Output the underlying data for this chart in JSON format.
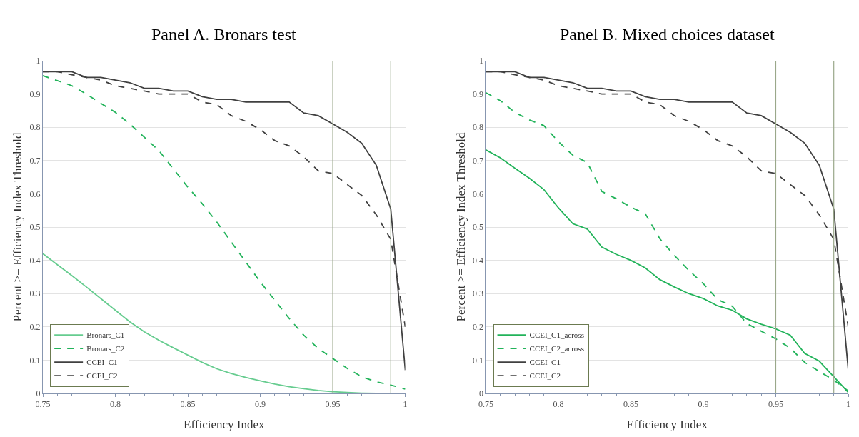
{
  "chart_data": [
    {
      "type": "line",
      "title": "Panel A. Bronars test",
      "xlabel": "Efficiency Index",
      "ylabel": "Percent >= Efficiency Index Threshold",
      "x": [
        0.75,
        0.76,
        0.77,
        0.78,
        0.79,
        0.8,
        0.81,
        0.82,
        0.83,
        0.84,
        0.85,
        0.86,
        0.87,
        0.88,
        0.89,
        0.9,
        0.91,
        0.92,
        0.93,
        0.94,
        0.95,
        0.96,
        0.97,
        0.98,
        0.99,
        1.0
      ],
      "series": [
        {
          "name": "Bronars_C1",
          "color": "#66cc8f",
          "line_style": "solid",
          "values": [
            0.42,
            0.387,
            0.354,
            0.32,
            0.285,
            0.25,
            0.215,
            0.185,
            0.16,
            0.137,
            0.115,
            0.093,
            0.074,
            0.06,
            0.048,
            0.038,
            0.028,
            0.02,
            0.014,
            0.009,
            0.005,
            0.003,
            0.001,
            0,
            0,
            0
          ]
        },
        {
          "name": "Bronars_C2",
          "color": "#22b35a",
          "line_style": "dashed",
          "values": [
            0.955,
            0.94,
            0.925,
            0.9,
            0.872,
            0.845,
            0.81,
            0.77,
            0.73,
            0.675,
            0.62,
            0.57,
            0.515,
            0.455,
            0.395,
            0.335,
            0.28,
            0.225,
            0.175,
            0.135,
            0.105,
            0.075,
            0.05,
            0.035,
            0.025,
            0.013
          ]
        },
        {
          "name": "CCEI_C1",
          "color": "#404040",
          "line_style": "solid",
          "values": [
            0.967,
            0.967,
            0.967,
            0.95,
            0.95,
            0.942,
            0.934,
            0.917,
            0.917,
            0.909,
            0.909,
            0.892,
            0.884,
            0.884,
            0.876,
            0.876,
            0.876,
            0.876,
            0.843,
            0.835,
            0.81,
            0.785,
            0.752,
            0.686,
            0.554,
            0.07
          ]
        },
        {
          "name": "CCEI_C2",
          "color": "#404040",
          "line_style": "dashed",
          "values": [
            0.967,
            0.967,
            0.958,
            0.95,
            0.942,
            0.925,
            0.917,
            0.909,
            0.9,
            0.9,
            0.9,
            0.876,
            0.868,
            0.835,
            0.818,
            0.793,
            0.76,
            0.744,
            0.711,
            0.669,
            0.661,
            0.628,
            0.595,
            0.537,
            0.463,
            0.2
          ]
        }
      ],
      "xlim": [
        0.75,
        1
      ],
      "xticks": [
        0.75,
        0.8,
        0.85,
        0.9,
        0.95,
        1
      ],
      "ylim": [
        0,
        1
      ],
      "yticks": [
        0,
        0.1,
        0.2,
        0.3,
        0.4,
        0.5,
        0.6,
        0.7,
        0.8,
        0.9,
        1
      ],
      "ref_lines": [
        {
          "axis": "x",
          "value": 0.95,
          "color": "#9aa88a"
        },
        {
          "axis": "x",
          "value": 0.99,
          "color": "#9aa88a"
        }
      ],
      "grid": "y",
      "legend": "bottom left"
    },
    {
      "type": "line",
      "title": "Panel B. Mixed choices dataset",
      "xlabel": "Efficiency Index",
      "ylabel": "Percent >= Efficiency Index Threshold",
      "x": [
        0.75,
        0.76,
        0.77,
        0.78,
        0.79,
        0.8,
        0.81,
        0.82,
        0.83,
        0.84,
        0.85,
        0.86,
        0.87,
        0.88,
        0.89,
        0.9,
        0.91,
        0.92,
        0.93,
        0.94,
        0.95,
        0.96,
        0.97,
        0.98,
        0.99,
        1.0
      ],
      "series": [
        {
          "name": "CCEI_C1_across",
          "color": "#22b35a",
          "line_style": "solid",
          "values": [
            0.732,
            0.708,
            0.677,
            0.647,
            0.613,
            0.558,
            0.51,
            0.494,
            0.44,
            0.418,
            0.4,
            0.377,
            0.342,
            0.32,
            0.3,
            0.285,
            0.263,
            0.25,
            0.224,
            0.208,
            0.194,
            0.175,
            0.12,
            0.097,
            0.05,
            0.003
          ]
        },
        {
          "name": "CCEI_C2_across",
          "color": "#22b35a",
          "line_style": "dashed",
          "values": [
            0.904,
            0.88,
            0.845,
            0.822,
            0.805,
            0.757,
            0.716,
            0.694,
            0.607,
            0.585,
            0.56,
            0.54,
            0.465,
            0.415,
            0.37,
            0.33,
            0.282,
            0.262,
            0.21,
            0.187,
            0.164,
            0.136,
            0.093,
            0.066,
            0.04,
            0.007
          ]
        },
        {
          "name": "CCEI_C1",
          "color": "#404040",
          "line_style": "solid",
          "values": [
            0.967,
            0.967,
            0.967,
            0.95,
            0.95,
            0.942,
            0.934,
            0.917,
            0.917,
            0.909,
            0.909,
            0.892,
            0.884,
            0.884,
            0.876,
            0.876,
            0.876,
            0.876,
            0.843,
            0.835,
            0.81,
            0.785,
            0.752,
            0.686,
            0.554,
            0.07
          ]
        },
        {
          "name": "CCEI_C2",
          "color": "#404040",
          "line_style": "dashed",
          "values": [
            0.967,
            0.967,
            0.958,
            0.95,
            0.942,
            0.925,
            0.917,
            0.909,
            0.9,
            0.9,
            0.9,
            0.876,
            0.868,
            0.835,
            0.818,
            0.793,
            0.76,
            0.744,
            0.711,
            0.669,
            0.661,
            0.628,
            0.595,
            0.537,
            0.463,
            0.2
          ]
        }
      ],
      "xlim": [
        0.75,
        1
      ],
      "xticks": [
        0.75,
        0.8,
        0.85,
        0.9,
        0.95,
        1
      ],
      "ylim": [
        0,
        1
      ],
      "yticks": [
        0,
        0.1,
        0.2,
        0.3,
        0.4,
        0.5,
        0.6,
        0.7,
        0.8,
        0.9,
        1
      ],
      "ref_lines": [
        {
          "axis": "x",
          "value": 0.95,
          "color": "#9aa88a"
        },
        {
          "axis": "x",
          "value": 0.99,
          "color": "#9aa88a"
        }
      ],
      "grid": "y",
      "legend": "bottom left"
    }
  ]
}
